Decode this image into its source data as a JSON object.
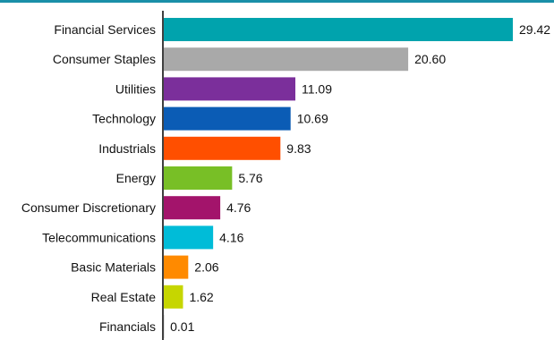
{
  "chart_data": {
    "type": "bar",
    "orientation": "horizontal",
    "title": "",
    "xlabel": "",
    "ylabel": "",
    "xlim": [
      0,
      30
    ],
    "grid": false,
    "categories": [
      "Financial Services",
      "Consumer Staples",
      "Utilities",
      "Technology",
      "Industrials",
      "Energy",
      "Consumer Discretionary",
      "Telecommunications",
      "Basic Materials",
      "Real Estate",
      "Financials"
    ],
    "values": [
      29.42,
      20.6,
      11.09,
      10.69,
      9.83,
      5.76,
      4.76,
      4.16,
      2.06,
      1.62,
      0.01
    ],
    "value_labels": [
      "29.42",
      "20.60",
      "11.09",
      "10.69",
      "9.83",
      "5.76",
      "4.76",
      "4.16",
      "2.06",
      "1.62",
      "0.01"
    ],
    "colors": [
      "#00a3ad",
      "#a9a9a9",
      "#7b2f9b",
      "#0b5cb5",
      "#ff4f00",
      "#78bf26",
      "#a3146b",
      "#00bcd8",
      "#ff8a00",
      "#c6d600",
      "#222222"
    ]
  }
}
